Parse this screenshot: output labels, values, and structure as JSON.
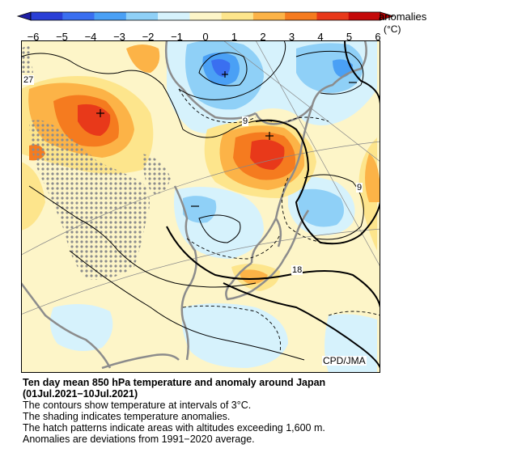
{
  "colorbar": {
    "title": "anomalies",
    "unit": "(°C)",
    "ticks": [
      "−6",
      "−5",
      "−4",
      "−3",
      "−2",
      "−1",
      "0",
      "1",
      "2",
      "3",
      "4",
      "5",
      "6"
    ],
    "colors": [
      "#2a3fd6",
      "#3a6ff0",
      "#4aa0f5",
      "#8fd0f7",
      "#d6f2fc",
      "#fdf5c8",
      "#fde58c",
      "#fcb347",
      "#f57b1f",
      "#e8391a",
      "#c40a0a"
    ]
  },
  "map": {
    "credit": "CPD/JMA",
    "contour_labels": [
      "27",
      "9",
      "9",
      "18"
    ],
    "hatch_color": "#8c8c8c",
    "land_outline_color": "#8c8c8c"
  },
  "caption": {
    "title_line1": "Ten day mean 850 hPa temperature and anomaly around Japan",
    "title_line2": "(01Jul.2021−10Jul.2021)",
    "line1": "The contours show temperature at intervals of 3°C.",
    "line2": "The shading indicates temperature anomalies.",
    "line3": "The hatch patterns indicate areas with altitudes exceeding 1,600 m.",
    "line4": "Anomalies are deviations from 1991−2020 average."
  }
}
